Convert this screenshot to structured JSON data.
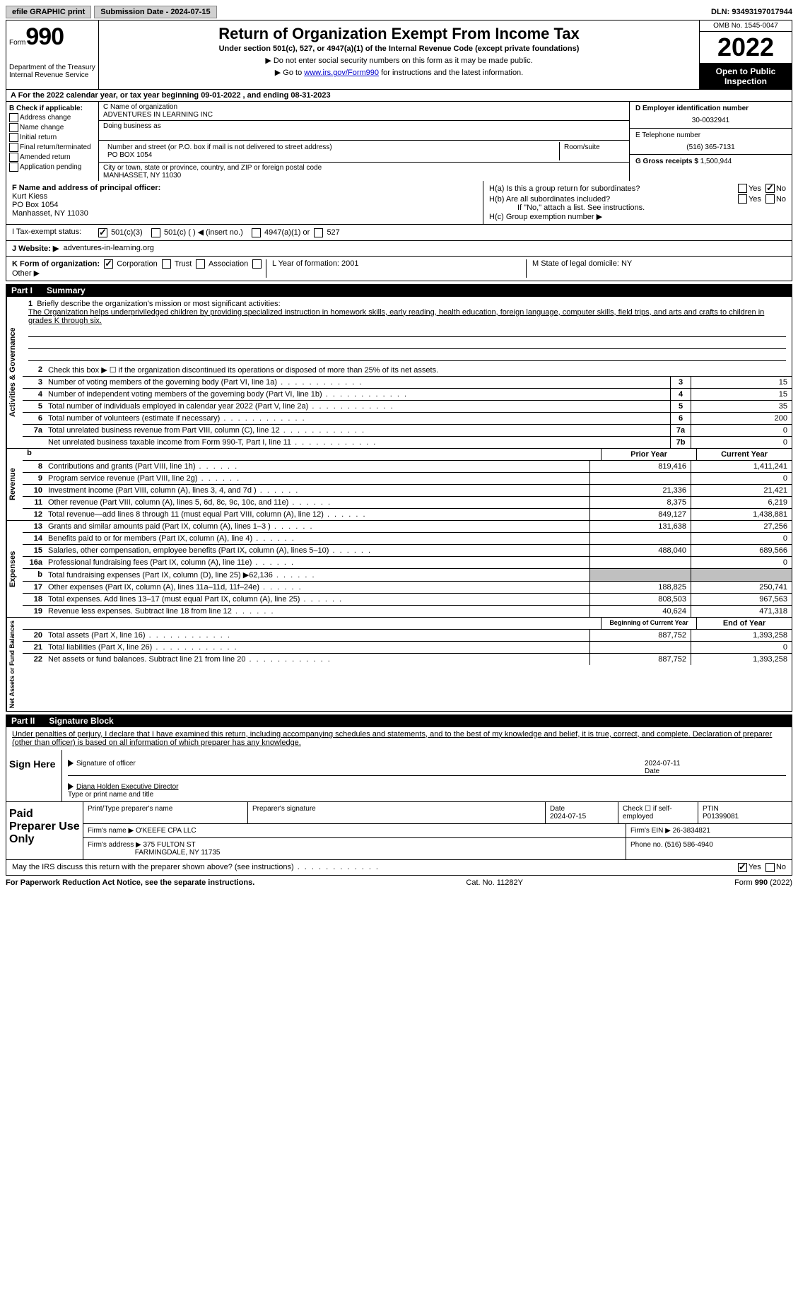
{
  "topbar": {
    "efile": "efile GRAPHIC print",
    "submission": "Submission Date - 2024-07-15",
    "dln": "DLN: 93493197017944"
  },
  "header": {
    "form_label": "Form",
    "form_number": "990",
    "dept": "Department of the Treasury Internal Revenue Service",
    "title": "Return of Organization Exempt From Income Tax",
    "subtitle": "Under section 501(c), 527, or 4947(a)(1) of the Internal Revenue Code (except private foundations)",
    "note1": "▶ Do not enter social security numbers on this form as it may be made public.",
    "note2_pre": "▶ Go to ",
    "note2_link": "www.irs.gov/Form990",
    "note2_post": " for instructions and the latest information.",
    "omb": "OMB No. 1545-0047",
    "year": "2022",
    "open": "Open to Public Inspection"
  },
  "row_a": "A For the 2022 calendar year, or tax year beginning 09-01-2022    , and ending 08-31-2023",
  "col_b": {
    "header": "B Check if applicable:",
    "items": [
      "Address change",
      "Name change",
      "Initial return",
      "Final return/terminated",
      "Amended return",
      "Application pending"
    ]
  },
  "col_c": {
    "name_label": "C Name of organization",
    "name": "ADVENTURES IN LEARNING INC",
    "dba": "Doing business as",
    "addr_label": "Number and street (or P.O. box if mail is not delivered to street address)",
    "room": "Room/suite",
    "addr": "PO BOX 1054",
    "city_label": "City or town, state or province, country, and ZIP or foreign postal code",
    "city": "MANHASSET, NY  11030"
  },
  "col_d": {
    "ein_label": "D Employer identification number",
    "ein": "30-0032941",
    "tel_label": "E Telephone number",
    "tel": "(516) 365-7131",
    "gross_label": "G Gross receipts $",
    "gross": "1,500,944"
  },
  "section_fh": {
    "f_label": "F Name and address of principal officer:",
    "f_name": "Kurt Kiess",
    "f_addr1": "PO Box 1054",
    "f_addr2": "Manhasset, NY  11030",
    "ha": "H(a)  Is this a group return for subordinates?",
    "hb": "H(b)  Are all subordinates included?",
    "hb_note": "If \"No,\" attach a list. See instructions.",
    "hc": "H(c)  Group exemption number ▶",
    "yes": "Yes",
    "no": "No"
  },
  "status": {
    "i": "I   Tax-exempt status:",
    "opt1": "501(c)(3)",
    "opt2": "501(c) (  ) ◀ (insert no.)",
    "opt3": "4947(a)(1) or",
    "opt4": "527"
  },
  "j": {
    "label": "J   Website: ▶",
    "value": "adventures-in-learning.org"
  },
  "k": {
    "label": "K Form of organization:",
    "corp": "Corporation",
    "trust": "Trust",
    "assoc": "Association",
    "other": "Other ▶",
    "l": "L Year of formation: 2001",
    "m": "M State of legal domicile: NY"
  },
  "part1": {
    "header_part": "Part I",
    "header_title": "Summary",
    "tab_gov": "Activities & Governance",
    "tab_rev": "Revenue",
    "tab_exp": "Expenses",
    "tab_net": "Net Assets or Fund Balances",
    "line1_label": "Briefly describe the organization's mission or most significant activities:",
    "line1_text": "The Organization helps underpriviledged children by providing specialized instruction in homework skills, early reading, health education, foreign language, computer skills, field trips, and arts and crafts to children in grades K through six.",
    "line2": "Check this box ▶ ☐  if the organization discontinued its operations or disposed of more than 25% of its net assets.",
    "lines_gov": [
      {
        "n": "3",
        "t": "Number of voting members of the governing body (Part VI, line 1a)",
        "b": "3",
        "v": "15"
      },
      {
        "n": "4",
        "t": "Number of independent voting members of the governing body (Part VI, line 1b)",
        "b": "4",
        "v": "15"
      },
      {
        "n": "5",
        "t": "Total number of individuals employed in calendar year 2022 (Part V, line 2a)",
        "b": "5",
        "v": "35"
      },
      {
        "n": "6",
        "t": "Total number of volunteers (estimate if necessary)",
        "b": "6",
        "v": "200"
      },
      {
        "n": "7a",
        "t": "Total unrelated business revenue from Part VIII, column (C), line 12",
        "b": "7a",
        "v": "0"
      },
      {
        "n": "",
        "t": "Net unrelated business taxable income from Form 990-T, Part I, line 11",
        "b": "7b",
        "v": "0"
      }
    ],
    "prior_year": "Prior Year",
    "current_year": "Current Year",
    "lines_rev": [
      {
        "n": "8",
        "t": "Contributions and grants (Part VIII, line 1h)",
        "pv": "819,416",
        "cv": "1,411,241"
      },
      {
        "n": "9",
        "t": "Program service revenue (Part VIII, line 2g)",
        "pv": "",
        "cv": "0"
      },
      {
        "n": "10",
        "t": "Investment income (Part VIII, column (A), lines 3, 4, and 7d )",
        "pv": "21,336",
        "cv": "21,421"
      },
      {
        "n": "11",
        "t": "Other revenue (Part VIII, column (A), lines 5, 6d, 8c, 9c, 10c, and 11e)",
        "pv": "8,375",
        "cv": "6,219"
      },
      {
        "n": "12",
        "t": "Total revenue—add lines 8 through 11 (must equal Part VIII, column (A), line 12)",
        "pv": "849,127",
        "cv": "1,438,881"
      }
    ],
    "lines_exp": [
      {
        "n": "13",
        "t": "Grants and similar amounts paid (Part IX, column (A), lines 1–3 )",
        "pv": "131,638",
        "cv": "27,256"
      },
      {
        "n": "14",
        "t": "Benefits paid to or for members (Part IX, column (A), line 4)",
        "pv": "",
        "cv": "0"
      },
      {
        "n": "15",
        "t": "Salaries, other compensation, employee benefits (Part IX, column (A), lines 5–10)",
        "pv": "488,040",
        "cv": "689,566"
      },
      {
        "n": "16a",
        "t": "Professional fundraising fees (Part IX, column (A), line 11e)",
        "pv": "",
        "cv": "0"
      },
      {
        "n": "b",
        "t": "Total fundraising expenses (Part IX, column (D), line 25) ▶62,136",
        "pv": "shade",
        "cv": "shade"
      },
      {
        "n": "17",
        "t": "Other expenses (Part IX, column (A), lines 11a–11d, 11f–24e)",
        "pv": "188,825",
        "cv": "250,741"
      },
      {
        "n": "18",
        "t": "Total expenses. Add lines 13–17 (must equal Part IX, column (A), line 25)",
        "pv": "808,503",
        "cv": "967,563"
      },
      {
        "n": "19",
        "t": "Revenue less expenses. Subtract line 18 from line 12",
        "pv": "40,624",
        "cv": "471,318"
      }
    ],
    "beg_year": "Beginning of Current Year",
    "end_year": "End of Year",
    "lines_net": [
      {
        "n": "20",
        "t": "Total assets (Part X, line 16)",
        "pv": "887,752",
        "cv": "1,393,258"
      },
      {
        "n": "21",
        "t": "Total liabilities (Part X, line 26)",
        "pv": "",
        "cv": "0"
      },
      {
        "n": "22",
        "t": "Net assets or fund balances. Subtract line 21 from line 20",
        "pv": "887,752",
        "cv": "1,393,258"
      }
    ]
  },
  "part2": {
    "header_part": "Part II",
    "header_title": "Signature Block",
    "declaration": "Under penalties of perjury, I declare that I have examined this return, including accompanying schedules and statements, and to the best of my knowledge and belief, it is true, correct, and complete. Declaration of preparer (other than officer) is based on all information of which preparer has any knowledge.",
    "sign_here": "Sign Here",
    "sig_officer": "Signature of officer",
    "sig_date": "2024-07-11",
    "date_label": "Date",
    "officer_name": "Diana Holden  Executive Director",
    "type_name": "Type or print name and title"
  },
  "preparer": {
    "label": "Paid Preparer Use Only",
    "print_name": "Print/Type preparer's name",
    "prep_sig": "Preparer's signature",
    "date_label": "Date",
    "date": "2024-07-15",
    "check_label": "Check ☐ if self-employed",
    "ptin_label": "PTIN",
    "ptin": "P01399081",
    "firm_name_label": "Firm's name    ▶",
    "firm_name": "O'KEEFE CPA LLC",
    "firm_ein_label": "Firm's EIN ▶",
    "firm_ein": "26-3834821",
    "firm_addr_label": "Firm's address ▶",
    "firm_addr1": "375 FULTON ST",
    "firm_addr2": "FARMINGDALE, NY  11735",
    "phone_label": "Phone no.",
    "phone": "(516) 586-4940"
  },
  "discuss": {
    "text": "May the IRS discuss this return with the preparer shown above? (see instructions)",
    "yes": "Yes",
    "no": "No"
  },
  "footer": {
    "left": "For Paperwork Reduction Act Notice, see the separate instructions.",
    "mid": "Cat. No. 11282Y",
    "right": "Form 990 (2022)"
  }
}
